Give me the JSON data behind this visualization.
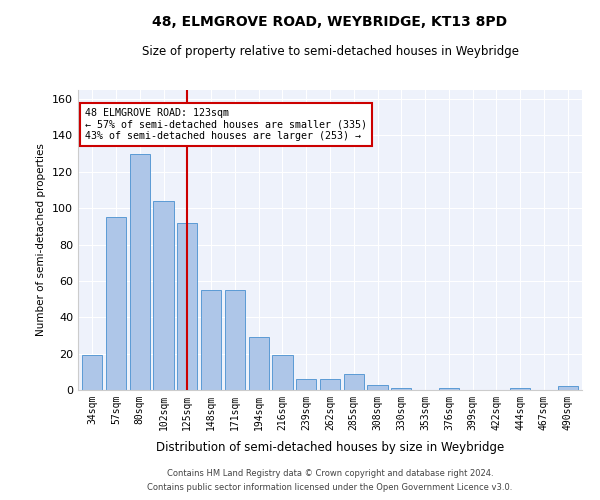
{
  "title_line1": "48, ELMGROVE ROAD, WEYBRIDGE, KT13 8PD",
  "title_line2": "Size of property relative to semi-detached houses in Weybridge",
  "xlabel": "Distribution of semi-detached houses by size in Weybridge",
  "ylabel": "Number of semi-detached properties",
  "categories": [
    "34sqm",
    "57sqm",
    "80sqm",
    "102sqm",
    "125sqm",
    "148sqm",
    "171sqm",
    "194sqm",
    "216sqm",
    "239sqm",
    "262sqm",
    "285sqm",
    "308sqm",
    "330sqm",
    "353sqm",
    "376sqm",
    "399sqm",
    "422sqm",
    "444sqm",
    "467sqm",
    "490sqm"
  ],
  "values": [
    19,
    95,
    130,
    104,
    92,
    55,
    55,
    29,
    19,
    6,
    6,
    9,
    3,
    1,
    0,
    1,
    0,
    0,
    1,
    0,
    2
  ],
  "bar_color": "#aec6e8",
  "bar_edgecolor": "#5b9bd5",
  "vline_x": 4,
  "annotation_title": "48 ELMGROVE ROAD: 123sqm",
  "annotation_line2": "← 57% of semi-detached houses are smaller (335)",
  "annotation_line3": "43% of semi-detached houses are larger (253) →",
  "annotation_box_color": "#ffffff",
  "annotation_box_edgecolor": "#cc0000",
  "vline_color": "#cc0000",
  "ylim": [
    0,
    165
  ],
  "yticks": [
    0,
    20,
    40,
    60,
    80,
    100,
    120,
    140,
    160
  ],
  "background_color": "#eef2fb",
  "footer_line1": "Contains HM Land Registry data © Crown copyright and database right 2024.",
  "footer_line2": "Contains public sector information licensed under the Open Government Licence v3.0."
}
